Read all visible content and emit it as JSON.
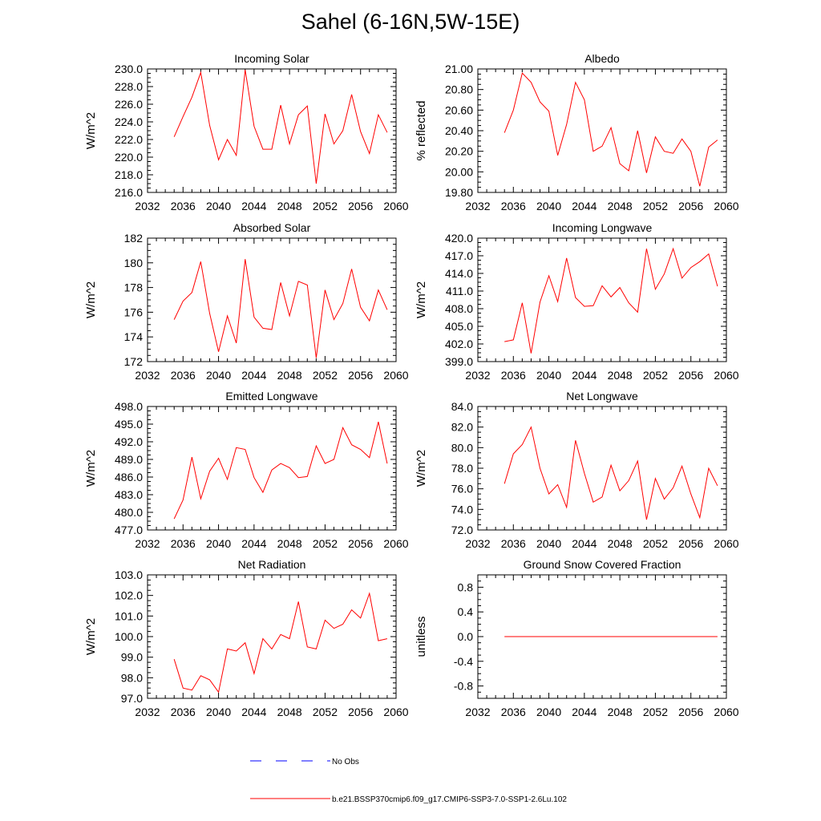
{
  "page": {
    "title": "Sahel (6-16N,5W-15E)"
  },
  "colors": {
    "model": "#ff0000",
    "obs": "#0000ff",
    "axis": "#000000",
    "background": "#ffffff"
  },
  "legend": {
    "items": [
      {
        "label": "No Obs",
        "style": "dashed",
        "color": "#0000ff"
      },
      {
        "label": "b.e21.BSSP370cmip6.f09_g17.CMIP6-SSP3-7.0-SSP1-2.6Lu.102",
        "style": "solid",
        "color": "#ff0000"
      }
    ]
  },
  "chart_data": [
    {
      "type": "line",
      "title": "Incoming Solar",
      "ylabel": "W/m^2",
      "xlim": [
        2032,
        2060
      ],
      "ylim": [
        216,
        230
      ],
      "xticks": [
        "2032",
        "2036",
        "2040",
        "2044",
        "2048",
        "2052",
        "2056",
        "2060"
      ],
      "yticks": [
        "216.0",
        "218.0",
        "220.0",
        "222.0",
        "224.0",
        "226.0",
        "228.0",
        "230.0"
      ],
      "x": [
        2035,
        2036,
        2037,
        2038,
        2039,
        2040,
        2041,
        2042,
        2043,
        2044,
        2045,
        2046,
        2047,
        2048,
        2049,
        2050,
        2051,
        2052,
        2053,
        2054,
        2055,
        2056,
        2057,
        2058,
        2059
      ],
      "series": [
        {
          "values": [
            222.3,
            224.6,
            226.8,
            229.6,
            223.6,
            219.7,
            222.0,
            220.2,
            229.9,
            223.5,
            220.9,
            220.9,
            225.9,
            221.5,
            224.8,
            225.8,
            217.0,
            224.9,
            221.5,
            223.0,
            227.1,
            222.9,
            220.4,
            224.8,
            222.8
          ]
        }
      ],
      "grid": false
    },
    {
      "type": "line",
      "title": "Albedo",
      "ylabel": "% reflected",
      "xlim": [
        2032,
        2060
      ],
      "ylim": [
        19.8,
        21.0
      ],
      "xticks": [
        "2032",
        "2036",
        "2040",
        "2044",
        "2048",
        "2052",
        "2056",
        "2060"
      ],
      "yticks": [
        "19.80",
        "20.00",
        "20.20",
        "20.40",
        "20.60",
        "20.80",
        "21.00"
      ],
      "x": [
        2035,
        2036,
        2037,
        2038,
        2039,
        2040,
        2041,
        2042,
        2043,
        2044,
        2045,
        2046,
        2047,
        2048,
        2049,
        2050,
        2051,
        2052,
        2053,
        2054,
        2055,
        2056,
        2057,
        2058,
        2059
      ],
      "series": [
        {
          "values": [
            20.38,
            20.6,
            20.96,
            20.87,
            20.68,
            20.59,
            20.16,
            20.46,
            20.87,
            20.7,
            20.2,
            20.25,
            20.43,
            20.08,
            20.01,
            20.4,
            19.99,
            20.34,
            20.2,
            20.18,
            20.32,
            20.2,
            19.86,
            20.24,
            20.31
          ]
        }
      ],
      "grid": false
    },
    {
      "type": "line",
      "title": "Absorbed Solar",
      "ylabel": "W/m^2",
      "xlim": [
        2032,
        2060
      ],
      "ylim": [
        172,
        182
      ],
      "xticks": [
        "2032",
        "2036",
        "2040",
        "2044",
        "2048",
        "2052",
        "2056",
        "2060"
      ],
      "yticks": [
        "172",
        "174",
        "176",
        "178",
        "180",
        "182"
      ],
      "x": [
        2035,
        2036,
        2037,
        2038,
        2039,
        2040,
        2041,
        2042,
        2043,
        2044,
        2045,
        2046,
        2047,
        2048,
        2049,
        2050,
        2051,
        2052,
        2053,
        2054,
        2055,
        2056,
        2057,
        2058,
        2059
      ],
      "series": [
        {
          "values": [
            175.4,
            176.9,
            177.6,
            180.1,
            175.9,
            172.8,
            175.7,
            173.5,
            180.3,
            175.6,
            174.7,
            174.6,
            178.4,
            175.7,
            178.5,
            178.2,
            172.3,
            177.8,
            175.4,
            176.7,
            179.5,
            176.4,
            175.3,
            177.8,
            176.2
          ]
        }
      ],
      "grid": false
    },
    {
      "type": "line",
      "title": "Incoming Longwave",
      "ylabel": "W/m^2",
      "xlim": [
        2032,
        2060
      ],
      "ylim": [
        399,
        420
      ],
      "xticks": [
        "2032",
        "2036",
        "2040",
        "2044",
        "2048",
        "2052",
        "2056",
        "2060"
      ],
      "yticks": [
        "399.0",
        "402.0",
        "405.0",
        "408.0",
        "411.0",
        "414.0",
        "417.0",
        "420.0"
      ],
      "x": [
        2035,
        2036,
        2037,
        2038,
        2039,
        2040,
        2041,
        2042,
        2043,
        2044,
        2045,
        2046,
        2047,
        2048,
        2049,
        2050,
        2051,
        2052,
        2053,
        2054,
        2055,
        2056,
        2057,
        2058,
        2059
      ],
      "series": [
        {
          "values": [
            402.4,
            402.7,
            409.0,
            400.4,
            409.1,
            413.6,
            409.2,
            416.6,
            409.9,
            408.4,
            408.5,
            411.9,
            410.0,
            411.6,
            409.0,
            407.4,
            418.2,
            411.3,
            413.9,
            418.2,
            413.2,
            415.0,
            416.0,
            417.3,
            411.8
          ]
        }
      ],
      "grid": false
    },
    {
      "type": "line",
      "title": "Emitted Longwave",
      "ylabel": "W/m^2",
      "xlim": [
        2032,
        2060
      ],
      "ylim": [
        477,
        498
      ],
      "xticks": [
        "2032",
        "2036",
        "2040",
        "2044",
        "2048",
        "2052",
        "2056",
        "2060"
      ],
      "yticks": [
        "477.0",
        "480.0",
        "483.0",
        "486.0",
        "489.0",
        "492.0",
        "495.0",
        "498.0"
      ],
      "x": [
        2035,
        2036,
        2037,
        2038,
        2039,
        2040,
        2041,
        2042,
        2043,
        2044,
        2045,
        2046,
        2047,
        2048,
        2049,
        2050,
        2051,
        2052,
        2053,
        2054,
        2055,
        2056,
        2057,
        2058,
        2059
      ],
      "series": [
        {
          "values": [
            478.9,
            482.1,
            489.4,
            482.3,
            487.0,
            489.2,
            485.6,
            491.0,
            490.7,
            485.9,
            483.4,
            487.2,
            488.3,
            487.6,
            485.9,
            486.1,
            491.3,
            488.3,
            489.0,
            494.4,
            491.5,
            490.7,
            489.3,
            495.4,
            488.3
          ]
        }
      ],
      "grid": false
    },
    {
      "type": "line",
      "title": "Net Longwave",
      "ylabel": "W/m^2",
      "xlim": [
        2032,
        2060
      ],
      "ylim": [
        72,
        84
      ],
      "xticks": [
        "2032",
        "2036",
        "2040",
        "2044",
        "2048",
        "2052",
        "2056",
        "2060"
      ],
      "yticks": [
        "72.0",
        "74.0",
        "76.0",
        "78.0",
        "80.0",
        "82.0",
        "84.0"
      ],
      "x": [
        2035,
        2036,
        2037,
        2038,
        2039,
        2040,
        2041,
        2042,
        2043,
        2044,
        2045,
        2046,
        2047,
        2048,
        2049,
        2050,
        2051,
        2052,
        2053,
        2054,
        2055,
        2056,
        2057,
        2058,
        2059
      ],
      "series": [
        {
          "values": [
            76.5,
            79.4,
            80.3,
            82.0,
            78.0,
            75.5,
            76.4,
            74.2,
            80.7,
            77.5,
            74.7,
            75.2,
            78.3,
            75.8,
            76.8,
            78.7,
            73.0,
            77.0,
            75.0,
            76.1,
            78.2,
            75.5,
            73.2,
            78.0,
            76.3
          ]
        }
      ],
      "grid": false
    },
    {
      "type": "line",
      "title": "Net Radiation",
      "ylabel": "W/m^2",
      "xlim": [
        2032,
        2060
      ],
      "ylim": [
        97,
        103
      ],
      "xticks": [
        "2032",
        "2036",
        "2040",
        "2044",
        "2048",
        "2052",
        "2056",
        "2060"
      ],
      "yticks": [
        "97.0",
        "98.0",
        "99.0",
        "100.0",
        "101.0",
        "102.0",
        "103.0"
      ],
      "x": [
        2035,
        2036,
        2037,
        2038,
        2039,
        2040,
        2041,
        2042,
        2043,
        2044,
        2045,
        2046,
        2047,
        2048,
        2049,
        2050,
        2051,
        2052,
        2053,
        2054,
        2055,
        2056,
        2057,
        2058,
        2059
      ],
      "series": [
        {
          "values": [
            98.9,
            97.5,
            97.4,
            98.1,
            97.9,
            97.3,
            99.4,
            99.3,
            99.7,
            98.2,
            99.9,
            99.4,
            100.1,
            99.9,
            101.7,
            99.5,
            99.4,
            100.8,
            100.4,
            100.6,
            101.3,
            100.9,
            102.1,
            99.8,
            99.9
          ]
        }
      ],
      "grid": false
    },
    {
      "type": "line",
      "title": "Ground Snow Covered Fraction",
      "ylabel": "unitless",
      "xlim": [
        2032,
        2060
      ],
      "ylim": [
        -1.0,
        1.0
      ],
      "xticks": [
        "2032",
        "2036",
        "2040",
        "2044",
        "2048",
        "2052",
        "2056",
        "2060"
      ],
      "yticks": [
        "-0.8",
        "-0.4",
        "0.0",
        "0.4",
        "0.8"
      ],
      "ytick_values": [
        -0.8,
        -0.4,
        0.0,
        0.4,
        0.8
      ],
      "x": [
        2035,
        2036,
        2037,
        2038,
        2039,
        2040,
        2041,
        2042,
        2043,
        2044,
        2045,
        2046,
        2047,
        2048,
        2049,
        2050,
        2051,
        2052,
        2053,
        2054,
        2055,
        2056,
        2057,
        2058,
        2059
      ],
      "series": [
        {
          "values": [
            0,
            0,
            0,
            0,
            0,
            0,
            0,
            0,
            0,
            0,
            0,
            0,
            0,
            0,
            0,
            0,
            0,
            0,
            0,
            0,
            0,
            0,
            0,
            0,
            0
          ]
        }
      ],
      "grid": false
    }
  ]
}
